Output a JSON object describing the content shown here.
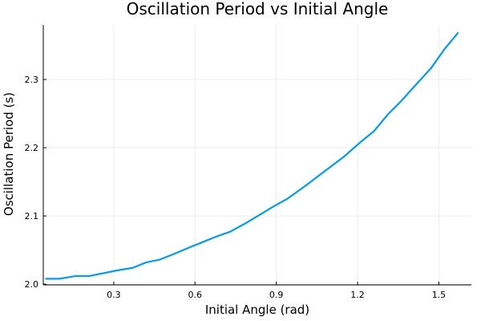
{
  "chart_data": {
    "type": "line",
    "title": "Oscillation Period vs Initial Angle",
    "xlabel": "Initial Angle (rad)",
    "ylabel": "Oscillation Period (s)",
    "xlim": [
      0.04,
      1.62
    ],
    "ylim": [
      1.999,
      2.38
    ],
    "xticks": [
      0.3,
      0.6,
      0.9,
      1.2,
      1.5
    ],
    "xtick_labels": [
      "0.3",
      "0.6",
      "0.9",
      "1.2",
      "1.5"
    ],
    "yticks": [
      2.0,
      2.1,
      2.2,
      2.3
    ],
    "ytick_labels": [
      "2.0",
      "2.1",
      "2.2",
      "2.3"
    ],
    "grid": true,
    "legend": "none",
    "line_color": "#009AFA",
    "series": [
      {
        "x": [
          0.05,
          0.1,
          0.16,
          0.21,
          0.26,
          0.31,
          0.37,
          0.42,
          0.47,
          0.52,
          0.58,
          0.63,
          0.68,
          0.73,
          0.79,
          0.84,
          0.89,
          0.94,
          1.0,
          1.05,
          1.1,
          1.15,
          1.21,
          1.26,
          1.31,
          1.36,
          1.41,
          1.47,
          1.52,
          1.57
        ],
        "values": [
          2.008,
          2.008,
          2.012,
          2.012,
          2.016,
          2.02,
          2.024,
          2.032,
          2.036,
          2.044,
          2.054,
          2.062,
          2.07,
          2.077,
          2.09,
          2.102,
          2.114,
          2.125,
          2.142,
          2.157,
          2.172,
          2.187,
          2.208,
          2.224,
          2.248,
          2.268,
          2.29,
          2.316,
          2.344,
          2.368
        ]
      }
    ]
  }
}
